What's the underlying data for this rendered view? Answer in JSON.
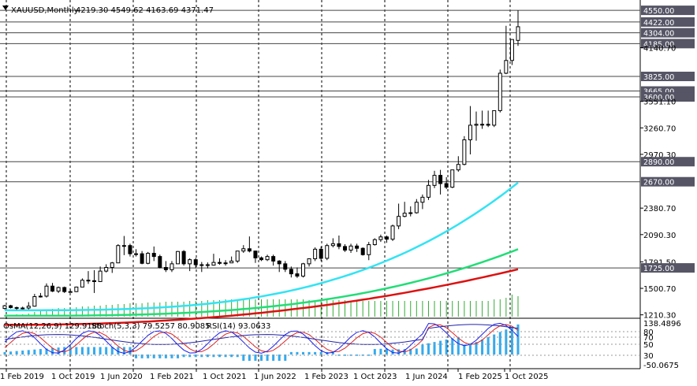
{
  "header": {
    "symbol": "XAUUSD,Monthly",
    "ohlc": "4219.30 4549.62 4163.69 4371.47",
    "indicator_title_osma": "OsMA(12,26,9) 129.9188",
    "indicator_title_stoch": "Stoch(5,3,3) 79.5257 80.9085",
    "indicator_title_rsi": "RSI(14) 93.0633"
  },
  "chart_data": [
    {
      "type": "candlestick",
      "title": "XAUUSD,Monthly",
      "ylim": [
        1190,
        4620
      ],
      "price_ticks": [
        "4550.00",
        "4422.00",
        "4304.00",
        "4185.00",
        "4140.70",
        "3825.00",
        "3665.00",
        "3600.00",
        "3551.10",
        "3260.70",
        "2970.30",
        "2890.00",
        "2670.00",
        "2380.70",
        "2090.30",
        "1791.50",
        "1725.00",
        "1500.70",
        "1210.30"
      ],
      "highlighted_levels": [
        "4550.00",
        "4422.00",
        "4304.00",
        "4185.00",
        "3825.00",
        "3665.00",
        "3600.00",
        "2890.00",
        "2670.00",
        "1725.00"
      ],
      "x_labels": [
        "1 Feb 2019",
        "1 Oct 2019",
        "1 Jun 2020",
        "1 Feb 2021",
        "1 Oct 2021",
        "1 Jun 2022",
        "1 Feb 2023",
        "1 Oct 2023",
        "1 Jun 2024",
        "1 Feb 2025",
        "1 Oct 2025"
      ],
      "candles": [
        [
          1280,
          1320,
          1270,
          1310
        ],
        [
          1310,
          1320,
          1280,
          1290
        ],
        [
          1290,
          1300,
          1265,
          1282
        ],
        [
          1282,
          1300,
          1270,
          1285
        ],
        [
          1285,
          1350,
          1270,
          1305
        ],
        [
          1305,
          1440,
          1300,
          1410
        ],
        [
          1410,
          1450,
          1400,
          1415
        ],
        [
          1415,
          1555,
          1400,
          1525
        ],
        [
          1525,
          1560,
          1460,
          1470
        ],
        [
          1470,
          1520,
          1450,
          1510
        ],
        [
          1510,
          1520,
          1450,
          1465
        ],
        [
          1465,
          1490,
          1455,
          1465
        ],
        [
          1465,
          1520,
          1460,
          1515
        ],
        [
          1515,
          1610,
          1515,
          1590
        ],
        [
          1590,
          1690,
          1550,
          1585
        ],
        [
          1585,
          1700,
          1450,
          1575
        ],
        [
          1575,
          1740,
          1570,
          1690
        ],
        [
          1690,
          1765,
          1675,
          1730
        ],
        [
          1730,
          1790,
          1670,
          1780
        ],
        [
          1780,
          1985,
          1780,
          1970
        ],
        [
          1970,
          2075,
          1865,
          1970
        ],
        [
          1970,
          1990,
          1850,
          1880
        ],
        [
          1880,
          1930,
          1850,
          1880
        ],
        [
          1880,
          1910,
          1765,
          1775
        ],
        [
          1775,
          1900,
          1765,
          1885
        ],
        [
          1885,
          1960,
          1800,
          1850
        ],
        [
          1850,
          1870,
          1720,
          1730
        ],
        [
          1730,
          1800,
          1680,
          1705
        ],
        [
          1705,
          1800,
          1680,
          1770
        ],
        [
          1770,
          1910,
          1770,
          1905
        ],
        [
          1905,
          1920,
          1750,
          1770
        ],
        [
          1770,
          1830,
          1690,
          1815
        ],
        [
          1815,
          1835,
          1720,
          1760
        ],
        [
          1760,
          1790,
          1680,
          1760
        ],
        [
          1760,
          1785,
          1720,
          1755
        ],
        [
          1755,
          1880,
          1750,
          1785
        ],
        [
          1785,
          1830,
          1760,
          1775
        ],
        [
          1775,
          1810,
          1750,
          1780
        ],
        [
          1780,
          1850,
          1780,
          1800
        ],
        [
          1800,
          1910,
          1780,
          1910
        ],
        [
          1910,
          1975,
          1890,
          1935
        ],
        [
          1935,
          2070,
          1895,
          1910
        ],
        [
          1910,
          1915,
          1780,
          1835
        ],
        [
          1835,
          1850,
          1800,
          1815
        ],
        [
          1815,
          1870,
          1800,
          1850
        ],
        [
          1850,
          1870,
          1750,
          1800
        ],
        [
          1800,
          1810,
          1680,
          1770
        ],
        [
          1770,
          1800,
          1680,
          1710
        ],
        [
          1710,
          1740,
          1620,
          1660
        ],
        [
          1660,
          1730,
          1615,
          1635
        ],
        [
          1635,
          1780,
          1620,
          1770
        ],
        [
          1770,
          1830,
          1740,
          1825
        ],
        [
          1825,
          1950,
          1800,
          1930
        ],
        [
          1930,
          1960,
          1800,
          1830
        ],
        [
          1830,
          1990,
          1810,
          1970
        ],
        [
          1970,
          2050,
          1950,
          1990
        ],
        [
          1990,
          2080,
          1930,
          1960
        ],
        [
          1960,
          1985,
          1900,
          1920
        ],
        [
          1920,
          1990,
          1890,
          1965
        ],
        [
          1965,
          1990,
          1900,
          1940
        ],
        [
          1940,
          1950,
          1860,
          1870
        ],
        [
          1870,
          2010,
          1810,
          1980
        ],
        [
          1980,
          2050,
          1970,
          2035
        ],
        [
          2035,
          2090,
          2010,
          2065
        ],
        [
          2065,
          2080,
          2000,
          2040
        ],
        [
          2040,
          2200,
          2020,
          2185
        ],
        [
          2185,
          2430,
          2150,
          2290
        ],
        [
          2290,
          2450,
          2280,
          2325
        ],
        [
          2325,
          2400,
          2290,
          2330
        ],
        [
          2330,
          2480,
          2320,
          2445
        ],
        [
          2445,
          2530,
          2370,
          2500
        ],
        [
          2500,
          2690,
          2470,
          2630
        ],
        [
          2630,
          2790,
          2600,
          2740
        ],
        [
          2740,
          2800,
          2530,
          2650
        ],
        [
          2650,
          2720,
          2590,
          2610
        ],
        [
          2610,
          2800,
          2600,
          2800
        ],
        [
          2800,
          2950,
          2780,
          2860
        ],
        [
          2860,
          3170,
          2850,
          3130
        ],
        [
          3130,
          3500,
          2970,
          3290
        ],
        [
          3290,
          3440,
          3120,
          3300
        ],
        [
          3300,
          3450,
          3250,
          3300
        ],
        [
          3300,
          3450,
          3270,
          3290
        ],
        [
          3290,
          3450,
          3270,
          3450
        ],
        [
          3450,
          3900,
          3430,
          3860
        ],
        [
          3860,
          4380,
          3850,
          4000
        ],
        [
          4000,
          4230,
          3950,
          4230
        ],
        [
          4220,
          4550,
          4160,
          4370
        ]
      ],
      "ma_fast_end": 2660,
      "ma_mid_end": 1930,
      "ma_slow_end": 1710
    },
    {
      "type": "bar",
      "title": "OsMA(12,26,9) 129.9188",
      "ylim": [
        -50.0675,
        138.4896
      ],
      "y_ticks": [
        "138.4896",
        "-50.0675"
      ],
      "stoch_rsi_levels": [
        "80",
        "70",
        "50",
        "30"
      ]
    }
  ],
  "colors": {
    "candle": "#000000",
    "ma_fast": "#33e3f3",
    "ma_mid": "#22dd77",
    "ma_slow": "#dd1111",
    "volume": "#33aa33",
    "osma": "#33aaee",
    "stoch_main": "#1a1aee",
    "stoch_signal": "#dd2222",
    "rsi": "#2222aa",
    "label_bg": "#555566",
    "grid": "#000000"
  }
}
